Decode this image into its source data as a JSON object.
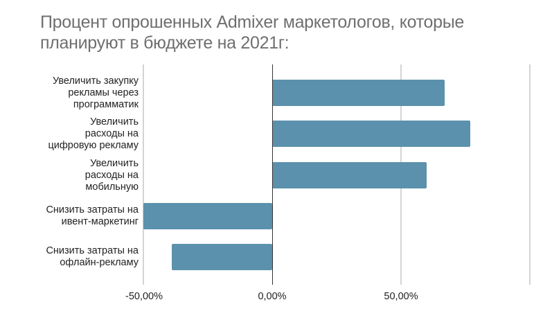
{
  "chart_data": {
    "type": "bar",
    "orientation": "horizontal",
    "title": "Процент  опрошенных Admixer  маркетологов, которые планируют в бюджете на  2021г:",
    "categories": [
      "Увеличить закупку рекламы через программатик",
      "Увеличить расходы на цифровую рекламу",
      "Увеличить расходы на мобильную",
      "Снизить затраты на ивент-маркетинг",
      "Снизить затраты на офлайн-рекламу"
    ],
    "values": [
      67,
      77,
      60,
      -50,
      -39
    ],
    "xlabel": "",
    "ylabel": "",
    "xlim": [
      -50,
      100
    ],
    "x_ticks": [
      "-50,00%",
      "0,00%",
      "50,00%"
    ],
    "grid": true,
    "bar_color": "#5b91ac",
    "legend": null
  },
  "title_lines": [
    "Процент  опрошенных Admixer  маркетологов, которые",
    "планируют в бюджете на  2021г:"
  ],
  "category_labels": [
    "Увеличить закупку\nрекламы через\nпрограмматик",
    "Увеличить\nрасходы на\nцифровую рекламу",
    "Увеличить\nрасходы  на\nмобильную",
    "Снизить затраты на\nивент-маркетинг",
    "Снизить затраты на\nофлайн-рекламу"
  ]
}
